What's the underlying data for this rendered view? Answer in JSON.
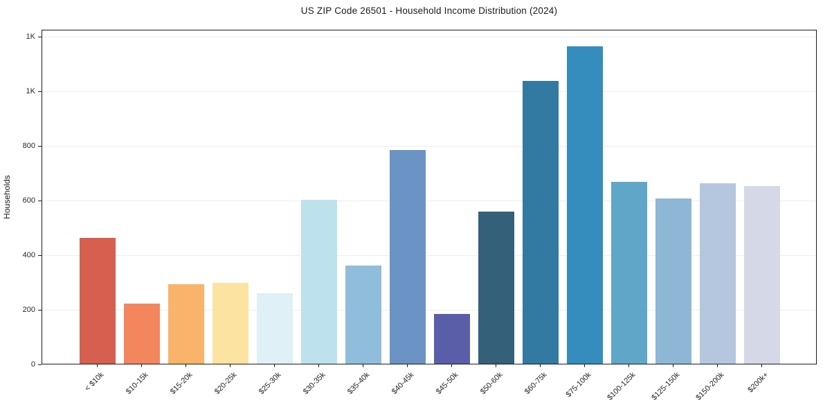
{
  "chart_data": {
    "type": "bar",
    "title": "US ZIP Code 26501 - Household Income Distribution (2024)",
    "xlabel": "",
    "ylabel": "Households",
    "categories": [
      "< $10k",
      "$10-15k",
      "$15-20k",
      "$20-25k",
      "$25-30k",
      "$30-35k",
      "$35-40k",
      "$40-45k",
      "$45-50k",
      "$50-60k",
      "$60-75k",
      "$75-100k",
      "$100-125k",
      "$125-150k",
      "$150-200k",
      "$200k+"
    ],
    "values": [
      460,
      219,
      290,
      296,
      258,
      600,
      359,
      781,
      183,
      556,
      1036,
      1163,
      666,
      604,
      660,
      650
    ],
    "bar_colors": [
      "#d65f50",
      "#f4865e",
      "#fab36a",
      "#fde3a2",
      "#dff0f6",
      "#bee2ed",
      "#90bddb",
      "#6b93c3",
      "#5a5ea8",
      "#34607a",
      "#337aa3",
      "#348dbd",
      "#60a6c8",
      "#8eb7d5",
      "#b5c7df",
      "#d5d8e7"
    ],
    "ylim": [
      0,
      1225
    ],
    "yticks": [
      {
        "value": 0,
        "label": "0"
      },
      {
        "value": 200,
        "label": "200"
      },
      {
        "value": 400,
        "label": "400"
      },
      {
        "value": 600,
        "label": "600"
      },
      {
        "value": 800,
        "label": "800"
      },
      {
        "value": 1000,
        "label": "1K"
      },
      {
        "value": 1200,
        "label": "1K"
      }
    ],
    "grid": "horizontal",
    "legend": "none"
  },
  "colors": {
    "background": "#ffffff",
    "axis": "#1a1a1a",
    "grid": "#ededed",
    "tick_text": "#262626"
  }
}
